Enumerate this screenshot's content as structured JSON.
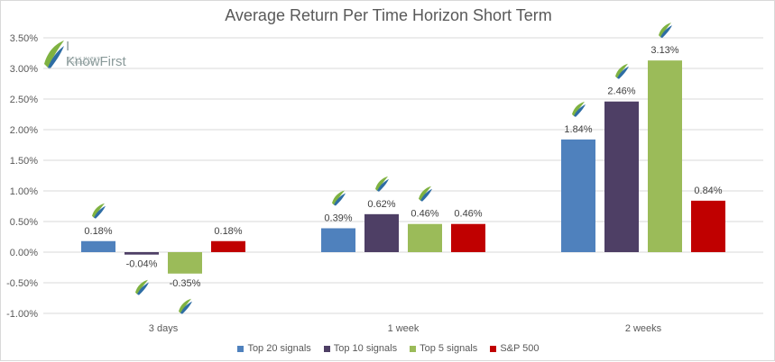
{
  "logo": {
    "name": "I KnowFirst",
    "tagline": "DAILY MARKET FORECAST"
  },
  "chart_data": {
    "type": "bar",
    "title": "Average Return Per Time Horizon Short Term",
    "categories": [
      "3 days",
      "1 week",
      "2 weeks"
    ],
    "series": [
      {
        "name": "Top 20 signals",
        "color": "#4f81bd",
        "values": [
          0.18,
          0.39,
          1.84
        ],
        "labels": [
          "0.18%",
          "0.39%",
          "1.84%"
        ]
      },
      {
        "name": "Top 10 signals",
        "color": "#4e3f65",
        "values": [
          -0.04,
          0.62,
          2.46
        ],
        "labels": [
          "-0.04%",
          "0.62%",
          "2.46%"
        ]
      },
      {
        "name": "Top 5 signals",
        "color": "#9bbb59",
        "values": [
          -0.35,
          0.46,
          3.13
        ],
        "labels": [
          "-0.35%",
          "0.46%",
          "3.13%"
        ]
      },
      {
        "name": "S&P 500",
        "color": "#c00000",
        "values": [
          0.18,
          0.46,
          0.84
        ],
        "labels": [
          "0.18%",
          "0.46%",
          "0.84%"
        ]
      }
    ],
    "yticks": [
      "3.50%",
      "3.00%",
      "2.50%",
      "2.00%",
      "1.50%",
      "1.00%",
      "0.50%",
      "0.00%",
      "-0.50%",
      "-1.00%"
    ],
    "ylim": [
      -1.0,
      3.5
    ],
    "grid": true,
    "legend": "bottom",
    "markers": [
      {
        "category": "3 days",
        "series": "Top 20 signals"
      },
      {
        "category": "3 days",
        "series": "Top 10 signals"
      },
      {
        "category": "3 days",
        "series": "Top 5 signals"
      },
      {
        "category": "1 week",
        "series": "Top 20 signals"
      },
      {
        "category": "1 week",
        "series": "Top 10 signals"
      },
      {
        "category": "1 week",
        "series": "Top 5 signals"
      },
      {
        "category": "2 weeks",
        "series": "Top 20 signals"
      },
      {
        "category": "2 weeks",
        "series": "Top 10 signals"
      },
      {
        "category": "2 weeks",
        "series": "Top 5 signals"
      }
    ]
  }
}
